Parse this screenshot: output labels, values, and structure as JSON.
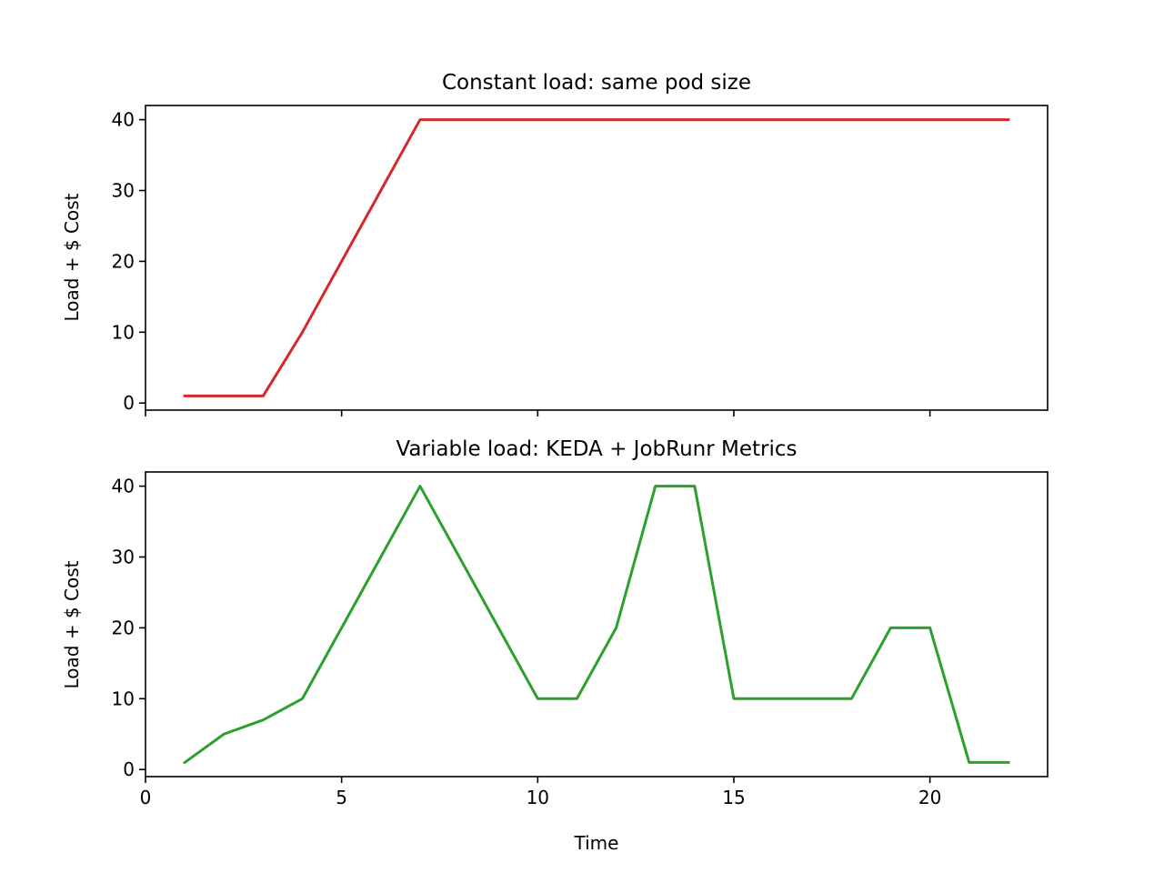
{
  "chart_data": [
    {
      "type": "line",
      "title": "Constant load: same pod size",
      "xlabel": "",
      "ylabel": "Load + $ Cost",
      "xlim": [
        0,
        23
      ],
      "ylim": [
        -1,
        42
      ],
      "x_ticks": [
        0,
        5,
        10,
        15,
        20
      ],
      "x_tick_labels_visible": false,
      "y_ticks": [
        0,
        10,
        20,
        30,
        40
      ],
      "grid": false,
      "series": [
        {
          "color": "#d62728",
          "x": [
            1,
            2,
            3,
            4,
            5,
            6,
            7,
            8,
            9,
            10,
            11,
            12,
            13,
            14,
            15,
            16,
            17,
            18,
            19,
            20,
            21,
            22
          ],
          "y": [
            1,
            1,
            1,
            10,
            20,
            30,
            40,
            40,
            40,
            40,
            40,
            40,
            40,
            40,
            40,
            40,
            40,
            40,
            40,
            40,
            40,
            40
          ]
        }
      ]
    },
    {
      "type": "line",
      "title": "Variable load: KEDA + JobRunr Metrics",
      "xlabel": "Time",
      "ylabel": "Load + $ Cost",
      "xlim": [
        0,
        23
      ],
      "ylim": [
        -1,
        42
      ],
      "x_ticks": [
        0,
        5,
        10,
        15,
        20
      ],
      "x_tick_labels_visible": true,
      "y_ticks": [
        0,
        10,
        20,
        30,
        40
      ],
      "grid": false,
      "series": [
        {
          "color": "#2ca02c",
          "x": [
            1,
            2,
            3,
            4,
            5,
            6,
            7,
            8,
            9,
            10,
            11,
            12,
            13,
            14,
            15,
            16,
            17,
            18,
            19,
            20,
            21,
            22
          ],
          "y": [
            1,
            5,
            7,
            10,
            20,
            30,
            40,
            30,
            20,
            10,
            10,
            20,
            40,
            40,
            10,
            10,
            10,
            10,
            20,
            20,
            1,
            1
          ]
        }
      ]
    }
  ]
}
